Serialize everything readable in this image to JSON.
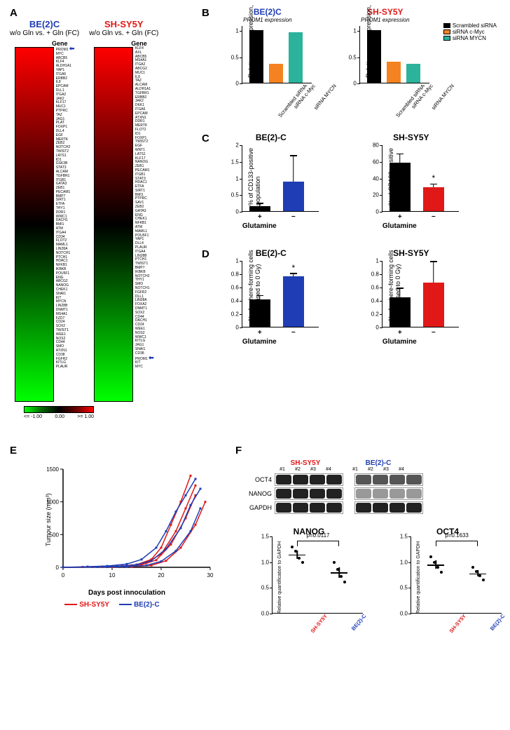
{
  "colors": {
    "be2c": "#1f3db4",
    "shsy5y": "#e01818",
    "black": "#000000",
    "orange": "#f58220",
    "teal": "#2bb39b"
  },
  "panelA": {
    "col1": {
      "title": "BE(2)C",
      "title_color": "#1f3db4",
      "subtitle": "w/o Gln vs. + Gln (FC)",
      "gene_header": "Gene",
      "gradient_top": "#ff0000",
      "gradient_mid": "#000000",
      "gradient_bot": "#00ff00",
      "genes": [
        "PROM1",
        "MYC",
        "ABCB5",
        "KLF4",
        "ALDH1A1",
        "YAP1",
        "ITGA6",
        "ERBB2",
        "IL8",
        "EPCAM",
        "DLL1",
        "ITGA2",
        "JAK2",
        "KLF17",
        "MUC1",
        "PTPRC",
        "TAZ",
        "JAG1",
        "PLAT",
        "FOXP1",
        "DLL4",
        "EGF",
        "MERTK",
        "ZEB2",
        "NOTCH2",
        "TWIST2",
        "LATS1",
        "ID1",
        "GSK3B",
        "STAT3",
        "ALCAM",
        "TGFBR1",
        "ITGB1",
        "GATA3",
        "ZEB1",
        "PECAM1",
        "BMP7",
        "SIRT1",
        "ETFA",
        "THY1",
        "DDR1",
        "WWC1",
        "DACH1",
        "BMI1",
        "ATM",
        "ITGA4",
        "CD34",
        "FLOT2",
        "MAML1",
        "LIN28A",
        "NOTCH1",
        "PTCH1",
        "HDAC1",
        "NFKB1",
        "IKBKB",
        "POU5F1",
        "ENG",
        "ABCG2",
        "NANOG",
        "CHEK1",
        "SNAI1",
        "KIT",
        "MYCN",
        "LIN28B",
        "DNMT1",
        "MS4A1",
        "FZD7",
        "CD24",
        "SOX2",
        "TWIST1",
        "WEE1",
        "NOS2",
        "CD44",
        "SMO",
        "ATXN1",
        "CD38",
        "FGFR2",
        "KITLG",
        "PLAUR"
      ],
      "arrow_gene_index": 0
    },
    "col2": {
      "title": "SH-SY5Y",
      "title_color": "#e01818",
      "subtitle": "w/o Gln vs. + Gln (FC)",
      "gene_header": "Gene",
      "genes": [
        "KLF4",
        "AXL",
        "ABCB5",
        "MS4A1",
        "ITGA2",
        "ABCG2",
        "MUC1",
        "IL8",
        "TAZ",
        "ALCAM",
        "ALDH1A1",
        "TGFBR1",
        "ERBB2",
        "JAK2",
        "DKK1",
        "ITGA6",
        "EPCAM",
        "ATXN1",
        "DDR1",
        "MERTK",
        "FLOT2",
        "ID1",
        "FOXP1",
        "TWIST2",
        "EGF",
        "WNT1",
        "LATS1",
        "KLF17",
        "NANOG",
        "ZEB1",
        "PECAM1",
        "ITGB1",
        "STAT3",
        "HDAC1",
        "ETFA",
        "SIRT1",
        "BMI1",
        "PTPRC",
        "SAV1",
        "ZEB2",
        "GATA3",
        "ENG",
        "CHEK1",
        "NFKB1",
        "ATM",
        "MAML1",
        "POU5F1",
        "YAP1",
        "DLL4",
        "PLAUR",
        "ITGA4",
        "LIN28B",
        "PTCH1",
        "TWIST1",
        "BMP7",
        "IKBKB",
        "NOTCH2",
        "THY1",
        "SMO",
        "NOTCH1",
        "FGFR2",
        "DLL1",
        "LIN28A",
        "FOXA2",
        "DNMT1",
        "SOX2",
        "CD44",
        "DACH1",
        "CD24",
        "WEE1",
        "NOS2",
        "WWC1",
        "KITLG",
        "JAG1",
        "SNAI1",
        "CD38",
        "PROM1",
        "KIT",
        "MYC"
      ],
      "arrow_gene_index": 76
    },
    "legend": {
      "min": "<= -1.00",
      "mid": "0.00",
      "max": ">= 1.00"
    }
  },
  "panelB": {
    "charts": [
      {
        "title": "BE(2)C",
        "title_color": "#1f3db4",
        "sub": "PROM1 expression",
        "ylabel": "Relative gene expression, a.u.",
        "ymax": 1.1,
        "ytick": 0.5,
        "bars": [
          {
            "label": "Scrambled siRNA",
            "val": 1.0,
            "fill": "#000000"
          },
          {
            "label": "siRNA c-Myc",
            "val": 0.36,
            "fill": "#f58220"
          },
          {
            "label": "siRNA MYCN",
            "val": 0.96,
            "fill": "#2bb39b"
          }
        ]
      },
      {
        "title": "SH-SY5Y",
        "title_color": "#e01818",
        "sub": "PROM1 expression",
        "ylabel": "Relative gene expression, a.u.",
        "ymax": 1.1,
        "ytick": 0.5,
        "bars": [
          {
            "label": "Scrambled siRNA",
            "val": 1.0,
            "fill": "#000000"
          },
          {
            "label": "siRNA c-Myc",
            "val": 0.4,
            "fill": "#f58220"
          },
          {
            "label": "siRNA MYCN",
            "val": 0.36,
            "fill": "#2bb39b"
          }
        ]
      }
    ],
    "legend": [
      {
        "label": "Scrambled siRNA",
        "color": "#000000"
      },
      {
        "label": "siRNA c-Myc",
        "color": "#f58220"
      },
      {
        "label": "siRNA MYCN",
        "color": "#2bb39b"
      }
    ]
  },
  "panelC": {
    "charts": [
      {
        "title": "BE(2)-C",
        "ylabel": "% of CD133-positive\npopulation",
        "ymax": 2.0,
        "ytick": 0.5,
        "xlabel": "Glutamine",
        "bars": [
          {
            "label": "+",
            "val": 0.15,
            "err": 0.07,
            "fill": "#000000"
          },
          {
            "label": "−",
            "val": 0.88,
            "err": 0.77,
            "fill": "#1f3db4"
          }
        ]
      },
      {
        "title": "SH-SY5Y",
        "ylabel": "% of CD133-positive\npopulation",
        "ymax": 80,
        "ytick": 20,
        "xlabel": "Glutamine",
        "bars": [
          {
            "label": "+",
            "val": 58,
            "err": 10,
            "fill": "#000000"
          },
          {
            "label": "−",
            "val": 29,
            "err": 3,
            "fill": "#e01818",
            "star": "*"
          }
        ]
      }
    ]
  },
  "panelD": {
    "charts": [
      {
        "title": "BE(2)-C",
        "ylabel": "% of sphere-forming cells\n(normalised to 0 Gy)",
        "ymax": 1.0,
        "ytick": 0.2,
        "xlabel": "Glutamine",
        "bars": [
          {
            "label": "+",
            "val": 0.41,
            "err": 0.05,
            "fill": "#000000"
          },
          {
            "label": "−",
            "val": 0.76,
            "err": 0.03,
            "fill": "#1f3db4",
            "star": "*"
          }
        ]
      },
      {
        "title": "SH-SY5Y",
        "ylabel": "% of sphere-forming cells\n(normalised to 0 Gy)",
        "ymax": 1.0,
        "ytick": 0.2,
        "xlabel": "Glutamine",
        "bars": [
          {
            "label": "+",
            "val": 0.44,
            "err": 0.13,
            "fill": "#000000"
          },
          {
            "label": "−",
            "val": 0.66,
            "err": 0.31,
            "fill": "#e01818"
          }
        ]
      }
    ]
  },
  "panelE": {
    "ylabel": "Tumour size (mm³)",
    "xlabel": "Days post innoculation",
    "xmax": 30,
    "ymax": 1500,
    "xtick": 10,
    "ytick": 500,
    "series": [
      {
        "color": "#e01818",
        "pts": [
          [
            0,
            0
          ],
          [
            4,
            5
          ],
          [
            8,
            10
          ],
          [
            12,
            20
          ],
          [
            15,
            40
          ],
          [
            18,
            120
          ],
          [
            20,
            300
          ],
          [
            22,
            650
          ],
          [
            24,
            1000
          ],
          [
            26,
            1400
          ]
        ]
      },
      {
        "color": "#e01818",
        "pts": [
          [
            0,
            0
          ],
          [
            6,
            5
          ],
          [
            10,
            10
          ],
          [
            14,
            30
          ],
          [
            17,
            70
          ],
          [
            20,
            200
          ],
          [
            23,
            550
          ],
          [
            25,
            900
          ],
          [
            27,
            1250
          ]
        ]
      },
      {
        "color": "#e01818",
        "pts": [
          [
            0,
            0
          ],
          [
            8,
            5
          ],
          [
            12,
            15
          ],
          [
            16,
            40
          ],
          [
            19,
            110
          ],
          [
            22,
            350
          ],
          [
            25,
            750
          ],
          [
            27,
            1100
          ]
        ]
      },
      {
        "color": "#e01818",
        "pts": [
          [
            0,
            0
          ],
          [
            10,
            5
          ],
          [
            14,
            10
          ],
          [
            18,
            30
          ],
          [
            21,
            100
          ],
          [
            24,
            300
          ],
          [
            27,
            650
          ],
          [
            29,
            1000
          ]
        ]
      },
      {
        "color": "#1f3db4",
        "pts": [
          [
            0,
            0
          ],
          [
            5,
            10
          ],
          [
            9,
            20
          ],
          [
            13,
            50
          ],
          [
            16,
            120
          ],
          [
            19,
            300
          ],
          [
            21,
            550
          ],
          [
            23,
            850
          ],
          [
            25,
            1100
          ],
          [
            27,
            1350
          ]
        ]
      },
      {
        "color": "#1f3db4",
        "pts": [
          [
            0,
            0
          ],
          [
            7,
            5
          ],
          [
            11,
            15
          ],
          [
            15,
            40
          ],
          [
            18,
            100
          ],
          [
            21,
            280
          ],
          [
            24,
            600
          ],
          [
            26,
            950
          ],
          [
            28,
            1200
          ]
        ]
      },
      {
        "color": "#1f3db4",
        "pts": [
          [
            0,
            0
          ],
          [
            9,
            5
          ],
          [
            13,
            10
          ],
          [
            17,
            30
          ],
          [
            20,
            90
          ],
          [
            23,
            250
          ],
          [
            26,
            550
          ],
          [
            28,
            900
          ]
        ]
      }
    ],
    "legend": [
      {
        "label": "SH-SY5Y",
        "color": "#e01818"
      },
      {
        "label": "BE(2)-C",
        "color": "#1f3db4"
      }
    ]
  },
  "panelF": {
    "headers": {
      "left": {
        "label": "SH-SY5Y",
        "color": "#e01818"
      },
      "right": {
        "label": "BE(2)-C",
        "color": "#1f3db4"
      }
    },
    "lanes": [
      "#1",
      "#2",
      "#3",
      "#4"
    ],
    "rows": [
      {
        "name": "OCT4"
      },
      {
        "name": "NANOG"
      },
      {
        "name": "GAPDH"
      }
    ],
    "dot_charts": [
      {
        "title": "NANOG",
        "pval": "p=0.0117",
        "ylabel": "Relative quantification to GAPDH",
        "ymax": 1.5,
        "ytick": 0.5,
        "groups": [
          {
            "label": "SH-SY5Y",
            "color": "#e01818",
            "mean": 1.15,
            "sem": 0.08,
            "pts": [
              1.3,
              1.22,
              1.08,
              1.0
            ]
          },
          {
            "label": "BE(2)-C",
            "color": "#1f3db4",
            "mean": 0.8,
            "sem": 0.1,
            "pts": [
              1.0,
              0.86,
              0.72,
              0.62
            ]
          }
        ]
      },
      {
        "title": "OCT4",
        "pval": "p=0.1633",
        "ylabel": "Relative quantification to GAPDH",
        "ymax": 1.5,
        "ytick": 0.5,
        "groups": [
          {
            "label": "SH-SY5Y",
            "color": "#e01818",
            "mean": 0.95,
            "sem": 0.08,
            "pts": [
              1.1,
              1.0,
              0.9,
              0.8
            ]
          },
          {
            "label": "BE(2)-C",
            "color": "#1f3db4",
            "mean": 0.78,
            "sem": 0.06,
            "pts": [
              0.9,
              0.82,
              0.74,
              0.66
            ]
          }
        ]
      }
    ]
  }
}
